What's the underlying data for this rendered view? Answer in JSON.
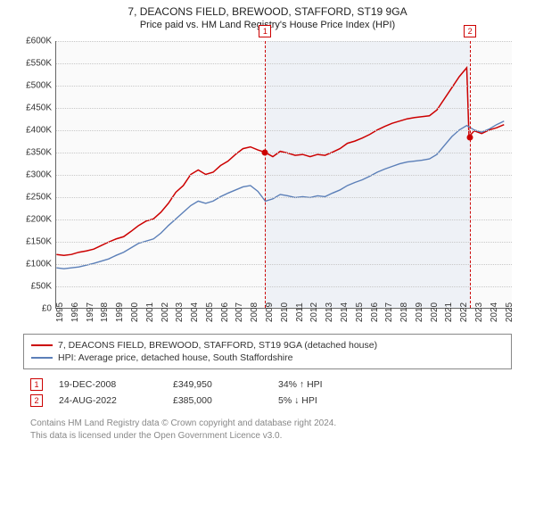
{
  "title": "7, DEACONS FIELD, BREWOOD, STAFFORD, ST19 9GA",
  "subtitle": "Price paid vs. HM Land Registry's House Price Index (HPI)",
  "chart": {
    "type": "line",
    "background_color": "#fafafa",
    "grid_color": "#c8c8c8",
    "axis_color": "#666666",
    "shade_color": "rgba(100,140,200,0.08)",
    "xlim": [
      1995,
      2025.5
    ],
    "ylim": [
      0,
      600000
    ],
    "ytick_step": 50000,
    "yticks": [
      "£0",
      "£50K",
      "£100K",
      "£150K",
      "£200K",
      "£250K",
      "£300K",
      "£350K",
      "£400K",
      "£450K",
      "£500K",
      "£550K",
      "£600K"
    ],
    "xticks": [
      1995,
      1996,
      1997,
      1998,
      1999,
      2000,
      2001,
      2002,
      2003,
      2004,
      2005,
      2006,
      2007,
      2008,
      2009,
      2010,
      2011,
      2012,
      2013,
      2014,
      2015,
      2016,
      2017,
      2018,
      2019,
      2020,
      2021,
      2022,
      2023,
      2024,
      2025
    ],
    "shade_range": [
      2008.96,
      2022.65
    ],
    "markers": [
      {
        "idx": "1",
        "x": 2008.96,
        "y": 349950
      },
      {
        "idx": "2",
        "x": 2022.65,
        "y": 385000
      }
    ],
    "series": [
      {
        "name": "property",
        "color": "#cc0000",
        "line_width": 1.5,
        "data": [
          [
            1995,
            120000
          ],
          [
            1995.5,
            118000
          ],
          [
            1996,
            120000
          ],
          [
            1996.5,
            125000
          ],
          [
            1997,
            128000
          ],
          [
            1997.5,
            132000
          ],
          [
            1998,
            140000
          ],
          [
            1998.5,
            148000
          ],
          [
            1999,
            155000
          ],
          [
            1999.5,
            160000
          ],
          [
            2000,
            172000
          ],
          [
            2000.5,
            185000
          ],
          [
            2001,
            195000
          ],
          [
            2001.5,
            200000
          ],
          [
            2002,
            215000
          ],
          [
            2002.5,
            235000
          ],
          [
            2003,
            260000
          ],
          [
            2003.5,
            275000
          ],
          [
            2004,
            300000
          ],
          [
            2004.5,
            310000
          ],
          [
            2005,
            300000
          ],
          [
            2005.5,
            305000
          ],
          [
            2006,
            320000
          ],
          [
            2006.5,
            330000
          ],
          [
            2007,
            345000
          ],
          [
            2007.5,
            358000
          ],
          [
            2008,
            362000
          ],
          [
            2008.5,
            355000
          ],
          [
            2008.96,
            349950
          ],
          [
            2009.5,
            340000
          ],
          [
            2010,
            352000
          ],
          [
            2010.5,
            348000
          ],
          [
            2011,
            343000
          ],
          [
            2011.5,
            345000
          ],
          [
            2012,
            340000
          ],
          [
            2012.5,
            345000
          ],
          [
            2013,
            343000
          ],
          [
            2013.5,
            350000
          ],
          [
            2014,
            358000
          ],
          [
            2014.5,
            370000
          ],
          [
            2015,
            375000
          ],
          [
            2015.5,
            382000
          ],
          [
            2016,
            390000
          ],
          [
            2016.5,
            400000
          ],
          [
            2017,
            408000
          ],
          [
            2017.5,
            415000
          ],
          [
            2018,
            420000
          ],
          [
            2018.5,
            425000
          ],
          [
            2019,
            428000
          ],
          [
            2019.5,
            430000
          ],
          [
            2020,
            432000
          ],
          [
            2020.5,
            445000
          ],
          [
            2021,
            470000
          ],
          [
            2021.5,
            495000
          ],
          [
            2022,
            520000
          ],
          [
            2022.5,
            540000
          ],
          [
            2022.65,
            385000
          ],
          [
            2023,
            398000
          ],
          [
            2023.5,
            392000
          ],
          [
            2024,
            400000
          ],
          [
            2024.5,
            405000
          ],
          [
            2025,
            412000
          ]
        ]
      },
      {
        "name": "hpi",
        "color": "#5b7fb8",
        "line_width": 1.4,
        "data": [
          [
            1995,
            90000
          ],
          [
            1995.5,
            88000
          ],
          [
            1996,
            90000
          ],
          [
            1996.5,
            92000
          ],
          [
            1997,
            96000
          ],
          [
            1997.5,
            100000
          ],
          [
            1998,
            105000
          ],
          [
            1998.5,
            110000
          ],
          [
            1999,
            118000
          ],
          [
            1999.5,
            125000
          ],
          [
            2000,
            135000
          ],
          [
            2000.5,
            145000
          ],
          [
            2001,
            150000
          ],
          [
            2001.5,
            155000
          ],
          [
            2002,
            168000
          ],
          [
            2002.5,
            185000
          ],
          [
            2003,
            200000
          ],
          [
            2003.5,
            215000
          ],
          [
            2004,
            230000
          ],
          [
            2004.5,
            240000
          ],
          [
            2005,
            235000
          ],
          [
            2005.5,
            240000
          ],
          [
            2006,
            250000
          ],
          [
            2006.5,
            258000
          ],
          [
            2007,
            265000
          ],
          [
            2007.5,
            272000
          ],
          [
            2008,
            275000
          ],
          [
            2008.5,
            262000
          ],
          [
            2009,
            240000
          ],
          [
            2009.5,
            245000
          ],
          [
            2010,
            255000
          ],
          [
            2010.5,
            252000
          ],
          [
            2011,
            248000
          ],
          [
            2011.5,
            250000
          ],
          [
            2012,
            248000
          ],
          [
            2012.5,
            252000
          ],
          [
            2013,
            250000
          ],
          [
            2013.5,
            258000
          ],
          [
            2014,
            265000
          ],
          [
            2014.5,
            275000
          ],
          [
            2015,
            282000
          ],
          [
            2015.5,
            288000
          ],
          [
            2016,
            296000
          ],
          [
            2016.5,
            305000
          ],
          [
            2017,
            312000
          ],
          [
            2017.5,
            318000
          ],
          [
            2018,
            324000
          ],
          [
            2018.5,
            328000
          ],
          [
            2019,
            330000
          ],
          [
            2019.5,
            332000
          ],
          [
            2020,
            335000
          ],
          [
            2020.5,
            345000
          ],
          [
            2021,
            365000
          ],
          [
            2021.5,
            385000
          ],
          [
            2022,
            400000
          ],
          [
            2022.5,
            410000
          ],
          [
            2023,
            400000
          ],
          [
            2023.5,
            395000
          ],
          [
            2024,
            402000
          ],
          [
            2024.5,
            412000
          ],
          [
            2025,
            420000
          ]
        ]
      }
    ]
  },
  "legend": {
    "items": [
      {
        "color": "#cc0000",
        "label": "7, DEACONS FIELD, BREWOOD, STAFFORD, ST19 9GA (detached house)"
      },
      {
        "color": "#5b7fb8",
        "label": "HPI: Average price, detached house, South Staffordshire"
      }
    ]
  },
  "transactions": [
    {
      "idx": "1",
      "date": "19-DEC-2008",
      "price": "£349,950",
      "diff": "34% ↑ HPI"
    },
    {
      "idx": "2",
      "date": "24-AUG-2022",
      "price": "£385,000",
      "diff": "5% ↓ HPI"
    }
  ],
  "footer": {
    "line1": "Contains HM Land Registry data © Crown copyright and database right 2024.",
    "line2": "This data is licensed under the Open Government Licence v3.0."
  }
}
